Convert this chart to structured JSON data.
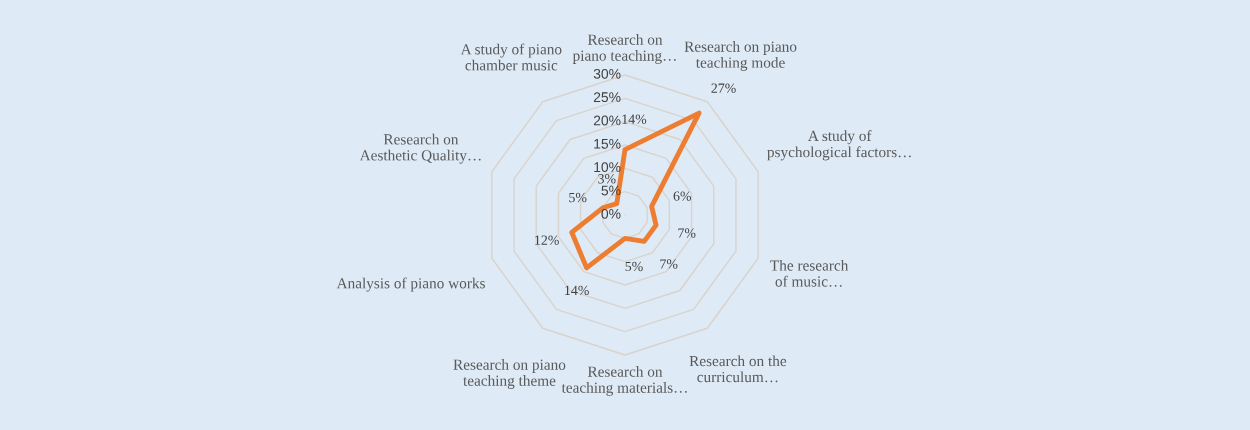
{
  "chart_data": {
    "type": "radar",
    "categories": [
      "Research on piano teaching…",
      "Research on piano teaching mode",
      "A study of psychological factors…",
      "The research of music…",
      "Research on the curriculum…",
      "Research on teaching materials…",
      "Research on piano teaching theme",
      "Analysis of piano works",
      "Research on Aesthetic Quality…",
      "A study of piano chamber music"
    ],
    "series": [
      {
        "color": "#ed7d31",
        "values": [
          14,
          27,
          6,
          7,
          7,
          5,
          14,
          12,
          5,
          3
        ],
        "value_labels": [
          "14%",
          "27%",
          "6%",
          "7%",
          "7%",
          "5%",
          "14%",
          "12%",
          "5%",
          "3%"
        ]
      }
    ],
    "ylim": [
      0,
      30
    ],
    "yticks": [
      {
        "value": 0,
        "label": "0%"
      },
      {
        "value": 5,
        "label": "5%"
      },
      {
        "value": 10,
        "label": "10%"
      },
      {
        "value": 15,
        "label": "15%"
      },
      {
        "value": 20,
        "label": "20%"
      },
      {
        "value": 25,
        "label": "25%"
      },
      {
        "value": 30,
        "label": "30%"
      }
    ],
    "grid": true
  }
}
